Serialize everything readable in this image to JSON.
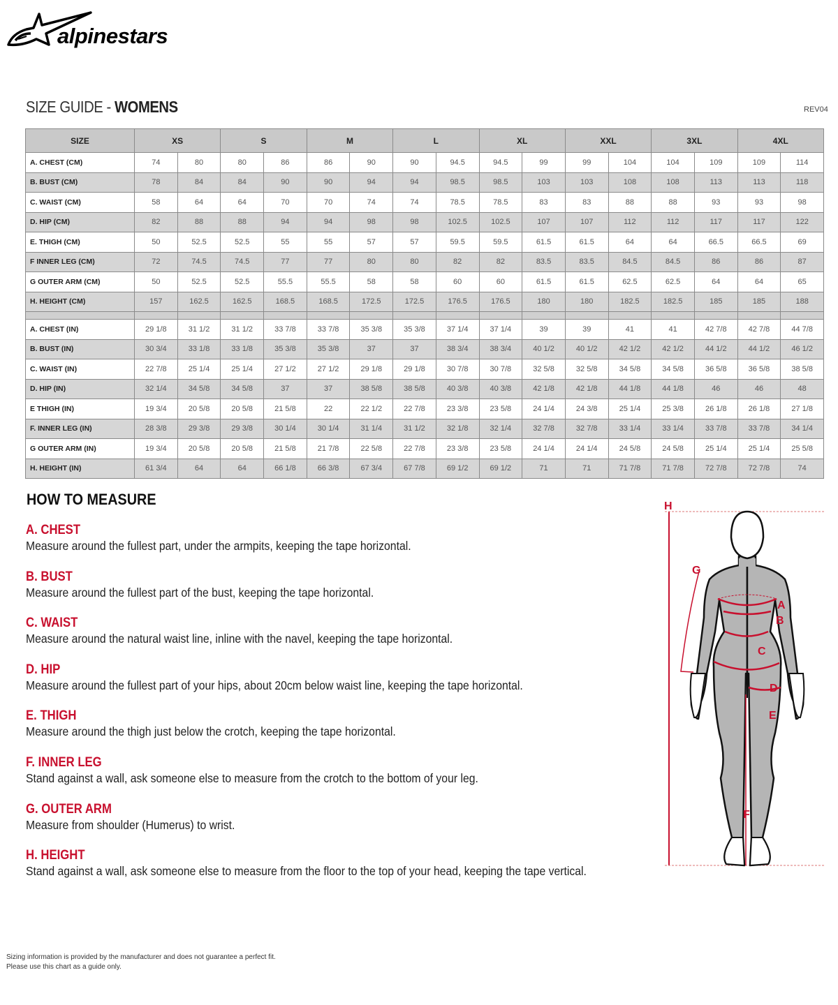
{
  "brand": {
    "logo_text": "alpinestars"
  },
  "header": {
    "title_prefix": "SIZE GUIDE - ",
    "title_bold": "WOMENS",
    "revision": "REV04"
  },
  "table": {
    "size_label": "SIZE",
    "sizes": [
      "XS",
      "S",
      "M",
      "L",
      "XL",
      "XXL",
      "3XL",
      "4XL"
    ],
    "cm_rows": [
      {
        "label": "A. CHEST (CM)",
        "values": [
          "74",
          "80",
          "80",
          "86",
          "86",
          "90",
          "90",
          "94.5",
          "94.5",
          "99",
          "99",
          "104",
          "104",
          "109",
          "109",
          "114"
        ]
      },
      {
        "label": "B. BUST (CM)",
        "values": [
          "78",
          "84",
          "84",
          "90",
          "90",
          "94",
          "94",
          "98.5",
          "98.5",
          "103",
          "103",
          "108",
          "108",
          "113",
          "113",
          "118"
        ]
      },
      {
        "label": "C. WAIST (CM)",
        "values": [
          "58",
          "64",
          "64",
          "70",
          "70",
          "74",
          "74",
          "78.5",
          "78.5",
          "83",
          "83",
          "88",
          "88",
          "93",
          "93",
          "98"
        ]
      },
      {
        "label": "D. HIP (CM)",
        "values": [
          "82",
          "88",
          "88",
          "94",
          "94",
          "98",
          "98",
          "102.5",
          "102.5",
          "107",
          "107",
          "112",
          "112",
          "117",
          "117",
          "122"
        ]
      },
      {
        "label": "E. THIGH (CM)",
        "values": [
          "50",
          "52.5",
          "52.5",
          "55",
          "55",
          "57",
          "57",
          "59.5",
          "59.5",
          "61.5",
          "61.5",
          "64",
          "64",
          "66.5",
          "66.5",
          "69"
        ]
      },
      {
        "label": "F INNER LEG (CM)",
        "values": [
          "72",
          "74.5",
          "74.5",
          "77",
          "77",
          "80",
          "80",
          "82",
          "82",
          "83.5",
          "83.5",
          "84.5",
          "84.5",
          "86",
          "86",
          "87"
        ]
      },
      {
        "label": "G OUTER ARM (CM)",
        "values": [
          "50",
          "52.5",
          "52.5",
          "55.5",
          "55.5",
          "58",
          "58",
          "60",
          "60",
          "61.5",
          "61.5",
          "62.5",
          "62.5",
          "64",
          "64",
          "65"
        ]
      },
      {
        "label": "H. HEIGHT (CM)",
        "values": [
          "157",
          "162.5",
          "162.5",
          "168.5",
          "168.5",
          "172.5",
          "172.5",
          "176.5",
          "176.5",
          "180",
          "180",
          "182.5",
          "182.5",
          "185",
          "185",
          "188"
        ]
      }
    ],
    "in_rows": [
      {
        "label": "A. CHEST (IN)",
        "values": [
          "29 1/8",
          "31 1/2",
          "31 1/2",
          "33 7/8",
          "33 7/8",
          "35 3/8",
          "35 3/8",
          "37 1/4",
          "37 1/4",
          "39",
          "39",
          "41",
          "41",
          "42 7/8",
          "42 7/8",
          "44 7/8"
        ]
      },
      {
        "label": "B. BUST (IN)",
        "values": [
          "30 3/4",
          "33 1/8",
          "33 1/8",
          "35 3/8",
          "35 3/8",
          "37",
          "37",
          "38 3/4",
          "38 3/4",
          "40 1/2",
          "40 1/2",
          "42 1/2",
          "42 1/2",
          "44 1/2",
          "44 1/2",
          "46 1/2"
        ]
      },
      {
        "label": "C. WAIST (IN)",
        "values": [
          "22 7/8",
          "25 1/4",
          "25 1/4",
          "27 1/2",
          "27 1/2",
          "29 1/8",
          "29 1/8",
          "30 7/8",
          "30 7/8",
          "32 5/8",
          "32 5/8",
          "34 5/8",
          "34 5/8",
          "36 5/8",
          "36 5/8",
          "38 5/8"
        ]
      },
      {
        "label": "D. HIP (IN)",
        "values": [
          "32 1/4",
          "34 5/8",
          "34 5/8",
          "37",
          "37",
          "38 5/8",
          "38 5/8",
          "40 3/8",
          "40 3/8",
          "42 1/8",
          "42 1/8",
          "44 1/8",
          "44 1/8",
          "46",
          "46",
          "48"
        ]
      },
      {
        "label": "E THIGH (IN)",
        "values": [
          "19 3/4",
          "20 5/8",
          "20 5/8",
          "21 5/8",
          "22",
          "22 1/2",
          "22 7/8",
          "23 3/8",
          "23 5/8",
          "24 1/4",
          "24 3/8",
          "25 1/4",
          "25 3/8",
          "26 1/8",
          "26 1/8",
          "27 1/8"
        ]
      },
      {
        "label": "F. INNER LEG (IN)",
        "values": [
          "28 3/8",
          "29 3/8",
          "29 3/8",
          "30 1/4",
          "30 1/4",
          "31 1/4",
          "31 1/2",
          "32 1/8",
          "32 1/4",
          "32 7/8",
          "32 7/8",
          "33 1/4",
          "33 1/4",
          "33 7/8",
          "33 7/8",
          "34 1/4"
        ]
      },
      {
        "label": "G OUTER ARM (IN)",
        "values": [
          "19 3/4",
          "20 5/8",
          "20 5/8",
          "21 5/8",
          "21 7/8",
          "22 5/8",
          "22 7/8",
          "23 3/8",
          "23 5/8",
          "24 1/4",
          "24 1/4",
          "24 5/8",
          "24 5/8",
          "25 1/4",
          "25 1/4",
          "25 5/8"
        ]
      },
      {
        "label": "H. HEIGHT (IN)",
        "values": [
          "61 3/4",
          "64",
          "64",
          "66 1/8",
          "66 3/8",
          "67 3/4",
          "67 7/8",
          "69 1/2",
          "69 1/2",
          "71",
          "71",
          "71 7/8",
          "71 7/8",
          "72 7/8",
          "72 7/8",
          "74"
        ]
      }
    ]
  },
  "how_to_measure": {
    "title": "HOW TO MEASURE",
    "items": [
      {
        "title": "A. CHEST",
        "text": "Measure around the fullest part, under the armpits, keeping the tape horizontal."
      },
      {
        "title": "B. BUST",
        "text": "Measure around the fullest part of the bust, keeping the tape horizontal."
      },
      {
        "title": "C. WAIST",
        "text": "Measure around the natural waist line, inline with the navel, keeping the tape horizontal."
      },
      {
        "title": "D. HIP",
        "text": "Measure around the fullest part of your hips, about 20cm below waist line, keeping the tape horizontal."
      },
      {
        "title": "E. THIGH",
        "text": "Measure around the thigh just below the crotch, keeping the tape horizontal."
      },
      {
        "title": "F. INNER LEG",
        "text": "Stand against a wall, ask someone else to measure from the crotch to the bottom of your leg."
      },
      {
        "title": "G. OUTER ARM",
        "text": "Measure from shoulder (Humerus) to wrist."
      },
      {
        "title": "H. HEIGHT",
        "text": "Stand against a wall, ask someone else to measure from the floor to the top of your head, keeping the tape vertical."
      }
    ]
  },
  "figure": {
    "labels": [
      "A",
      "B",
      "C",
      "D",
      "E",
      "F",
      "G",
      "H"
    ],
    "accent_color": "#c8102e",
    "suit_color": "#b5b5b5"
  },
  "footer": {
    "line1": "Sizing information is provided by the manufacturer and does not guarantee a perfect fit.",
    "line2": "Please use this chart as a guide only."
  }
}
